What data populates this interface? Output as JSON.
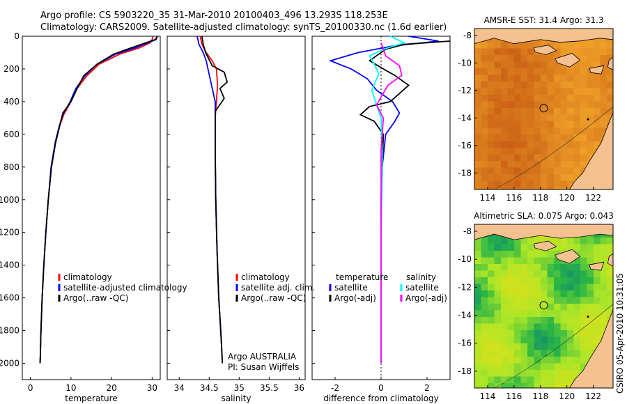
{
  "header": {
    "line1": "Argo profile: CS 5903220_35 31-Mar-2010 20100403_496 13.293S 118.253E",
    "line2": "Climatology: CARS2009. Satellite-adjusted climatology: synTS_20100330.nc (1.6d earlier)"
  },
  "side_stamp": "CSIRO 05-Apr-2010 10:31:05",
  "colors": {
    "climatology": "#ff0000",
    "satellite": "#0000ff",
    "argo": "#000000",
    "salinity_satellite": "#00ffff",
    "salinity_argo": "#ff00ff",
    "land": "#f5c190"
  },
  "chart_data": [
    {
      "type": "line",
      "name": "temperature-profile",
      "xlabel": "temperature",
      "ylabel": "",
      "xlim": [
        -2,
        32
      ],
      "ylim": [
        2100,
        0
      ],
      "xticks": [
        0,
        10,
        20,
        30
      ],
      "yticks": [
        0,
        200,
        400,
        600,
        800,
        1000,
        1200,
        1400,
        1600,
        1800,
        2000
      ],
      "legend": [
        "climatology",
        "satellite-adjusted climatology",
        "Argo(..raw -QC)"
      ],
      "series": [
        {
          "name": "climatology",
          "color": "#ff0000",
          "x": [
            30.2,
            30.0,
            29.5,
            27,
            22,
            17,
            14,
            11.5,
            10,
            8.2,
            7.2,
            6.2,
            5.2,
            4.4,
            3.8,
            3.3,
            2.9,
            2.6,
            2.4
          ],
          "y": [
            0,
            20,
            40,
            70,
            110,
            170,
            240,
            320,
            400,
            480,
            550,
            650,
            800,
            1000,
            1200,
            1400,
            1600,
            1800,
            2000
          ]
        },
        {
          "name": "satellite-adjusted climatology",
          "color": "#0000ff",
          "x": [
            31.3,
            31.0,
            29.0,
            26,
            21,
            16.5,
            13.5,
            11.2,
            9.8,
            8.0,
            7.1,
            6.1,
            5.1,
            4.4,
            3.8,
            3.3,
            2.9,
            2.6,
            2.4
          ],
          "y": [
            0,
            20,
            40,
            70,
            110,
            170,
            240,
            320,
            400,
            480,
            550,
            650,
            800,
            1000,
            1200,
            1400,
            1600,
            1800,
            2000
          ]
        },
        {
          "name": "Argo(..raw -QC)",
          "color": "#000000",
          "x": [
            31.3,
            30.8,
            28.5,
            25,
            20.5,
            16.5,
            13.2,
            11.5,
            10.0,
            8.0,
            7.2,
            6.2,
            5.2,
            4.4,
            3.8,
            3.3,
            2.9,
            2.6,
            2.4
          ],
          "y": [
            0,
            20,
            40,
            70,
            110,
            170,
            240,
            320,
            400,
            470,
            550,
            650,
            800,
            1000,
            1200,
            1400,
            1600,
            1800,
            2000
          ]
        }
      ]
    },
    {
      "type": "line",
      "name": "salinity-profile",
      "xlabel": "salinity",
      "xlim": [
        33.8,
        36.1
      ],
      "ylim": [
        2100,
        0
      ],
      "xticks": [
        34,
        34.5,
        35,
        35.5,
        36
      ],
      "legend": [
        "climatology",
        "satellite adj. clim.",
        "Argo(..raw -QC)"
      ],
      "float_info": [
        "Argo AUSTRALIA",
        "PI: Susan Wijffels"
      ],
      "series": [
        {
          "name": "climatology",
          "color": "#ff0000",
          "x": [
            34.35,
            34.38,
            34.45,
            34.55,
            34.62,
            34.64,
            34.62,
            34.6,
            34.6,
            34.61,
            34.63,
            34.66,
            34.7,
            34.72
          ],
          "y": [
            0,
            50,
            100,
            150,
            200,
            300,
            400,
            500,
            700,
            1000,
            1300,
            1600,
            1850,
            2000
          ]
        },
        {
          "name": "satellite adj. clim.",
          "color": "#0000ff",
          "x": [
            34.3,
            34.33,
            34.4,
            34.45,
            34.48,
            34.54,
            34.6,
            34.6,
            34.6,
            34.61,
            34.63,
            34.66,
            34.7,
            34.72
          ],
          "y": [
            0,
            50,
            100,
            150,
            200,
            300,
            400,
            500,
            700,
            1000,
            1300,
            1600,
            1850,
            2000
          ]
        },
        {
          "name": "Argo(..raw -QC)",
          "color": "#000000",
          "x": [
            34.38,
            34.4,
            34.44,
            34.55,
            34.75,
            34.8,
            34.68,
            34.75,
            34.6,
            34.6,
            34.61,
            34.63,
            34.66,
            34.7,
            34.72
          ],
          "y": [
            0,
            50,
            100,
            180,
            220,
            280,
            320,
            380,
            460,
            700,
            1000,
            1300,
            1600,
            1850,
            2000
          ]
        }
      ]
    },
    {
      "type": "line",
      "name": "difference-profile",
      "xlabel": "difference from climatology",
      "xlim": [
        -3,
        3
      ],
      "ylim": [
        2100,
        0
      ],
      "xticks": [
        -2,
        0,
        2
      ],
      "legend_left": {
        "title": "temperature",
        "items": [
          "satellite",
          "Argo(-adj)"
        ]
      },
      "legend_right": {
        "title": "salinity",
        "items": [
          "satellite",
          "Argo(-adj)"
        ]
      },
      "series": [
        {
          "name": "temperature satellite",
          "color": "#0000ff",
          "x": [
            1.2,
            2.5,
            0.5,
            -1.0,
            -2.2,
            -1.3,
            -0.6,
            -0.2,
            0.5,
            0.8,
            0.6,
            0.2,
            0.05,
            0.0,
            0.0
          ],
          "y": [
            0,
            30,
            60,
            100,
            150,
            200,
            260,
            330,
            400,
            470,
            520,
            600,
            800,
            1200,
            2000
          ]
        },
        {
          "name": "temperature Argo(-adj)",
          "color": "#000000",
          "x": [
            3.0,
            1.0,
            0.2,
            -0.5,
            0.1,
            0.6,
            1.2,
            0.4,
            -0.5,
            -0.9,
            -0.3,
            0.1,
            0.0,
            0.0
          ],
          "y": [
            30,
            50,
            80,
            150,
            200,
            240,
            300,
            400,
            430,
            480,
            520,
            600,
            1000,
            2000
          ]
        },
        {
          "name": "salinity satellite",
          "color": "#00ffff",
          "x": [
            0.4,
            1.0,
            0.1,
            -0.5,
            -0.3,
            -0.1,
            -0.4,
            -0.2,
            0.0,
            0.05,
            0.0,
            0.0
          ],
          "y": [
            0,
            40,
            80,
            120,
            170,
            230,
            330,
            420,
            500,
            700,
            1200,
            2000
          ]
        },
        {
          "name": "salinity Argo(-adj)",
          "color": "#ff00ff",
          "x": [
            0.0,
            0.1,
            0.2,
            0.8,
            0.9,
            0.3,
            -0.2,
            0.1,
            0.0,
            0.0
          ],
          "y": [
            40,
            80,
            120,
            180,
            240,
            300,
            420,
            500,
            700,
            2000
          ]
        }
      ]
    },
    {
      "type": "heatmap",
      "name": "sst-map",
      "title": "AMSR-E SST: 31.4  Argo: 31.3",
      "xticks": [
        114,
        116,
        118,
        120,
        122
      ],
      "yticks": [
        -8,
        -10,
        -12,
        -14,
        -16,
        -18
      ],
      "xlim": [
        113,
        123.5
      ],
      "ylim": [
        -19.2,
        -7.5
      ],
      "marker": {
        "lon": 118.25,
        "lat": -13.29
      }
    },
    {
      "type": "heatmap",
      "name": "sla-map",
      "title": "Altimetric SLA: 0.075  Argo: 0.043",
      "xticks": [
        114,
        116,
        118,
        120,
        122
      ],
      "yticks": [
        -8,
        -10,
        -12,
        -14,
        -16,
        -18
      ],
      "xlim": [
        113,
        123.5
      ],
      "ylim": [
        -19.2,
        -7.5
      ],
      "marker": {
        "lon": 118.25,
        "lat": -13.29
      }
    }
  ]
}
